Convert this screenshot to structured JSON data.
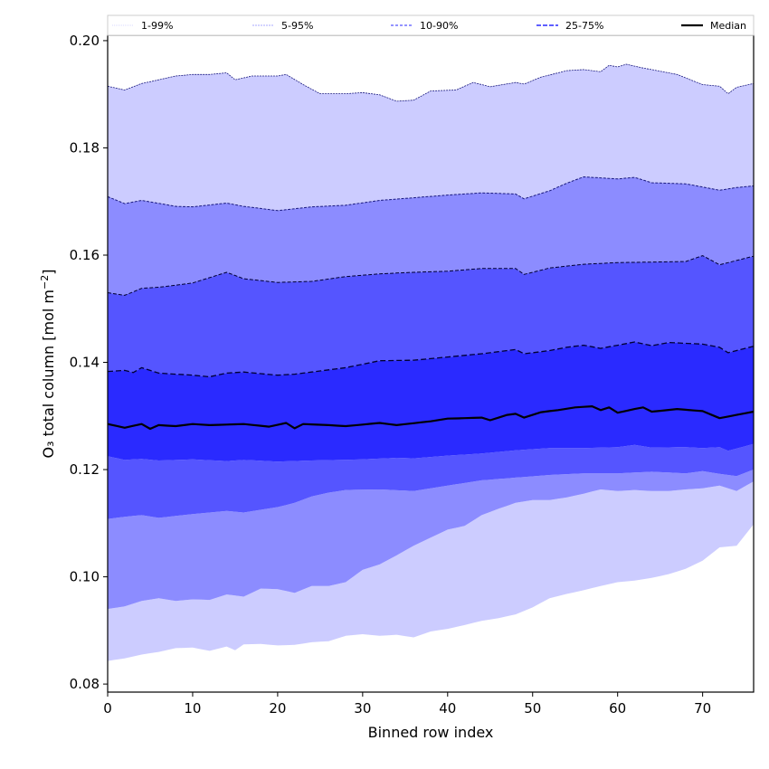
{
  "chart_data": {
    "type": "area",
    "title": "",
    "xlabel": "Binned row index",
    "ylabel_main": "O₃ total column [mol m",
    "ylabel_sup": "−2",
    "ylabel_end": "]",
    "xlim": [
      0,
      76
    ],
    "ylim": [
      0.0785,
      0.201
    ],
    "grid": false,
    "legend_position": "top",
    "x_ticks": [
      0,
      10,
      20,
      30,
      40,
      50,
      60,
      70
    ],
    "x_tick_labels": [
      "0",
      "10",
      "20",
      "30",
      "40",
      "50",
      "60",
      "70"
    ],
    "y_ticks": [
      0.08,
      0.1,
      0.12,
      0.14,
      0.16,
      0.18,
      0.2
    ],
    "y_tick_labels": [
      "0.08",
      "0.10",
      "0.12",
      "0.14",
      "0.16",
      "0.18",
      "0.20"
    ],
    "colors": {
      "band_1_99": "#ccccff",
      "band_5_95": "#8c8cff",
      "band_10_90": "#5555ff",
      "band_25_75": "#2a2aff",
      "line_1_99": "#ccccff",
      "line_5_95": "#8c8cff",
      "line_10_90": "#5555ff",
      "line_25_75": "#2a2aff",
      "median": "#000000",
      "upper_dash": "#1a1a80",
      "dark_dash": "#000033"
    },
    "legend": [
      {
        "label": "1-99%",
        "style": "dotted",
        "color": "#ccccff"
      },
      {
        "label": "5-95%",
        "style": "dashed-fine",
        "color": "#8c8cff"
      },
      {
        "label": "10-90%",
        "style": "dashed",
        "color": "#5555ff"
      },
      {
        "label": "25-75%",
        "style": "dashed-bold",
        "color": "#2a2aff"
      },
      {
        "label": "Median",
        "style": "solid",
        "color": "#000000"
      }
    ],
    "key_x": [
      0,
      2,
      4,
      6,
      8,
      10,
      12,
      14,
      15,
      17,
      20,
      21,
      23,
      25,
      28,
      30,
      32,
      34,
      36,
      38,
      41,
      43,
      45,
      48,
      49,
      51,
      54,
      56,
      58,
      59,
      60,
      61,
      63,
      67,
      70,
      72,
      73,
      74,
      76
    ],
    "series": [
      {
        "name": "p99",
        "x": [
          0,
          2,
          4,
          6,
          8,
          10,
          12,
          14,
          15,
          17,
          20,
          21,
          23,
          25,
          28,
          30,
          32,
          34,
          36,
          38,
          41,
          43,
          45,
          48,
          49,
          51,
          54,
          56,
          58,
          59,
          60,
          61,
          63,
          67,
          70,
          72,
          73,
          74,
          76
        ],
        "values": [
          0.1915,
          0.1908,
          0.192,
          0.1927,
          0.1934,
          0.1937,
          0.1937,
          0.194,
          0.1927,
          0.1934,
          0.1934,
          0.1937,
          0.1918,
          0.1901,
          0.1901,
          0.1903,
          0.1899,
          0.1887,
          0.1889,
          0.1906,
          0.1908,
          0.1922,
          0.1914,
          0.1922,
          0.1919,
          0.1932,
          0.1944,
          0.1946,
          0.1942,
          0.1954,
          0.1951,
          0.1956,
          0.1949,
          0.1937,
          0.1918,
          0.1915,
          0.1901,
          0.1913,
          0.192
        ]
      },
      {
        "name": "p95",
        "x": [
          0,
          2,
          4,
          8,
          10,
          14,
          16,
          20,
          24,
          28,
          32,
          36,
          40,
          44,
          48,
          49,
          52,
          54,
          56,
          60,
          62,
          64,
          68,
          72,
          74,
          76
        ],
        "values": [
          0.1709,
          0.1696,
          0.1702,
          0.1691,
          0.169,
          0.1697,
          0.1691,
          0.1683,
          0.169,
          0.1693,
          0.1702,
          0.1707,
          0.1712,
          0.1716,
          0.1714,
          0.1705,
          0.172,
          0.1734,
          0.1746,
          0.1742,
          0.1745,
          0.1735,
          0.1733,
          0.1721,
          0.1726,
          0.1729
        ]
      },
      {
        "name": "p90",
        "x": [
          0,
          2,
          4,
          6,
          10,
          14,
          16,
          20,
          24,
          28,
          32,
          36,
          40,
          44,
          48,
          49,
          52,
          56,
          60,
          64,
          68,
          70,
          72,
          76
        ],
        "values": [
          0.153,
          0.1525,
          0.1538,
          0.154,
          0.1548,
          0.1568,
          0.1556,
          0.1549,
          0.1551,
          0.156,
          0.1565,
          0.1568,
          0.157,
          0.1575,
          0.1575,
          0.1564,
          0.1576,
          0.1583,
          0.1586,
          0.1587,
          0.1588,
          0.1599,
          0.1582,
          0.1598
        ]
      },
      {
        "name": "p75",
        "x": [
          0,
          2,
          3,
          4,
          6,
          8,
          10,
          12,
          14,
          16,
          18,
          20,
          22,
          24,
          28,
          32,
          36,
          40,
          44,
          48,
          49,
          52,
          54,
          56,
          58,
          60,
          62,
          64,
          66,
          70,
          72,
          73,
          74,
          76
        ],
        "values": [
          0.1383,
          0.1385,
          0.1381,
          0.139,
          0.138,
          0.1378,
          0.1376,
          0.1373,
          0.138,
          0.1382,
          0.1379,
          0.1376,
          0.1378,
          0.1382,
          0.139,
          0.1403,
          0.1404,
          0.141,
          0.1416,
          0.1424,
          0.1416,
          0.1422,
          0.1428,
          0.1432,
          0.1426,
          0.1432,
          0.1438,
          0.1431,
          0.1437,
          0.1434,
          0.1428,
          0.1418,
          0.1422,
          0.143
        ]
      },
      {
        "name": "median",
        "x": [
          0,
          2,
          4,
          5,
          6,
          8,
          10,
          12,
          16,
          19,
          21,
          22,
          23,
          26,
          28,
          32,
          34,
          38,
          40,
          44,
          45,
          47,
          48,
          49,
          51,
          53,
          55,
          57,
          58,
          59,
          60,
          62,
          63,
          64,
          67,
          70,
          72,
          76
        ],
        "values": [
          0.1285,
          0.1278,
          0.1285,
          0.1276,
          0.1283,
          0.1281,
          0.1285,
          0.1283,
          0.1285,
          0.128,
          0.1287,
          0.1277,
          0.1285,
          0.1283,
          0.1281,
          0.1287,
          0.1283,
          0.129,
          0.1295,
          0.1297,
          0.1292,
          0.1302,
          0.1304,
          0.1297,
          0.1307,
          0.1311,
          0.1316,
          0.1318,
          0.1311,
          0.1316,
          0.1306,
          0.1313,
          0.1316,
          0.1308,
          0.1313,
          0.1309,
          0.1296,
          0.1308
        ]
      },
      {
        "name": "p25",
        "x": [
          0,
          2,
          4,
          6,
          10,
          14,
          16,
          20,
          24,
          30,
          34,
          36,
          40,
          44,
          48,
          52,
          56,
          60,
          62,
          64,
          68,
          70,
          72,
          73,
          76
        ],
        "values": [
          0.1225,
          0.1218,
          0.122,
          0.1217,
          0.1219,
          0.1216,
          0.1218,
          0.1215,
          0.1217,
          0.1219,
          0.1222,
          0.1221,
          0.1226,
          0.123,
          0.1236,
          0.124,
          0.124,
          0.1242,
          0.1246,
          0.1241,
          0.1242,
          0.124,
          0.1242,
          0.1235,
          0.1248
        ]
      },
      {
        "name": "p10",
        "x": [
          0,
          2,
          4,
          6,
          10,
          14,
          16,
          20,
          22,
          24,
          26,
          28,
          32,
          36,
          40,
          44,
          48,
          52,
          56,
          60,
          64,
          68,
          70,
          72,
          74,
          76
        ],
        "values": [
          0.1108,
          0.1112,
          0.1115,
          0.111,
          0.1117,
          0.1123,
          0.112,
          0.113,
          0.1138,
          0.115,
          0.1157,
          0.1162,
          0.1163,
          0.116,
          0.117,
          0.118,
          0.1185,
          0.119,
          0.1193,
          0.1193,
          0.1196,
          0.1193,
          0.1197,
          0.1192,
          0.1188,
          0.12
        ]
      },
      {
        "name": "p5",
        "x": [
          0,
          2,
          4,
          6,
          8,
          10,
          12,
          14,
          16,
          18,
          20,
          22,
          24,
          26,
          28,
          30,
          32,
          34,
          36,
          38,
          40,
          42,
          44,
          46,
          48,
          50,
          52,
          54,
          56,
          58,
          60,
          62,
          64,
          66,
          68,
          70,
          72,
          74,
          76
        ],
        "values": [
          0.094,
          0.0945,
          0.0955,
          0.096,
          0.0955,
          0.0958,
          0.0957,
          0.0967,
          0.0963,
          0.0978,
          0.0977,
          0.097,
          0.0983,
          0.0983,
          0.099,
          0.1013,
          0.1023,
          0.104,
          0.1058,
          0.1073,
          0.1088,
          0.1095,
          0.1115,
          0.1127,
          0.1138,
          0.1143,
          0.1143,
          0.1148,
          0.1155,
          0.1163,
          0.116,
          0.1162,
          0.116,
          0.116,
          0.1163,
          0.1165,
          0.117,
          0.116,
          0.1178
        ]
      },
      {
        "name": "p1",
        "x": [
          0,
          2,
          4,
          6,
          8,
          10,
          12,
          14,
          15,
          16,
          18,
          20,
          22,
          24,
          26,
          28,
          30,
          32,
          34,
          36,
          38,
          40,
          42,
          44,
          46,
          48,
          50,
          52,
          54,
          56,
          58,
          60,
          62,
          64,
          66,
          68,
          70,
          72,
          74,
          76
        ],
        "values": [
          0.0843,
          0.0848,
          0.0855,
          0.086,
          0.0867,
          0.0868,
          0.0862,
          0.087,
          0.0863,
          0.0874,
          0.0875,
          0.0872,
          0.0873,
          0.0878,
          0.088,
          0.089,
          0.0893,
          0.089,
          0.0892,
          0.0887,
          0.0898,
          0.0903,
          0.091,
          0.0918,
          0.0923,
          0.093,
          0.0943,
          0.096,
          0.0968,
          0.0975,
          0.0983,
          0.099,
          0.0993,
          0.0998,
          0.1005,
          0.1015,
          0.103,
          0.1055,
          0.1058,
          0.1098
        ]
      }
    ]
  }
}
